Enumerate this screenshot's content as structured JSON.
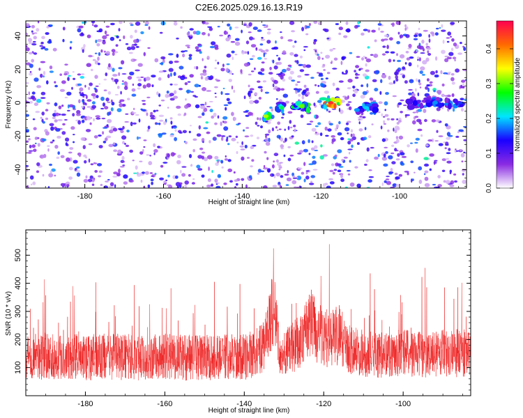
{
  "title": "C2E6.2025.029.16.13.R19",
  "chart_data": [
    {
      "type": "heatmap",
      "xlabel": "Height of straight line (km)",
      "ylabel": "Frequency (Hz)",
      "xlim": [
        -195,
        -83
      ],
      "ylim": [
        -51,
        49
      ],
      "xticks": [
        -180,
        -160,
        -140,
        -120,
        -100
      ],
      "yticks": [
        -40,
        -20,
        0,
        20,
        40
      ],
      "grid": false,
      "colorbar": {
        "label": "Normalized spectral amplitude",
        "range": [
          0,
          0.48
        ],
        "ticks": [
          "0.0",
          "0.1",
          "0.2",
          "0.3",
          "0.4"
        ],
        "stops": [
          "#ffffff",
          "#8a2be2",
          "#1a00ff",
          "#00e5ff",
          "#00ff00",
          "#ffff00",
          "#ff6a00",
          "#ff0050"
        ]
      },
      "signal_segments": [
        {
          "x_start": -135,
          "x_end": -133,
          "freq": -8,
          "peak": 0.32
        },
        {
          "x_start": -131,
          "x_end": -129,
          "freq": -3,
          "peak": 0.25
        },
        {
          "x_start": -127,
          "x_end": -123,
          "freq": -2,
          "peak": 0.3
        },
        {
          "x_start": -120,
          "x_end": -115,
          "freq": 0,
          "peak": 0.45
        },
        {
          "x_start": -111,
          "x_end": -106,
          "freq": -3,
          "peak": 0.2
        },
        {
          "x_start": -98,
          "x_end": -84,
          "freq": 0,
          "peak": 0.18
        }
      ]
    },
    {
      "type": "line",
      "xlabel": "Height of straight line (km)",
      "ylabel": "SNR (10 * v/v)",
      "xlim": [
        -195,
        -83
      ],
      "ylim": [
        0,
        590
      ],
      "xticks": [
        -180,
        -160,
        -140,
        -120,
        -100
      ],
      "yticks": [
        100,
        200,
        300,
        400,
        500
      ],
      "line_color": "#ee2222",
      "grid": false,
      "series": [
        {
          "x": [
            -195,
            -190,
            -185,
            -180,
            -175,
            -170,
            -165,
            -160,
            -155,
            -150,
            -145,
            -140,
            -136,
            -134,
            -133,
            -132,
            -131,
            -130,
            -128,
            -126,
            -124,
            -123,
            -122,
            -120,
            -118,
            -116,
            -115,
            -114,
            -112,
            -110,
            -108,
            -106,
            -104,
            -102,
            -100,
            -98,
            -96,
            -94,
            -92,
            -90,
            -88,
            -86,
            -84,
            -83
          ],
          "values": [
            140,
            138,
            142,
            135,
            140,
            138,
            137,
            139,
            136,
            135,
            140,
            138,
            160,
            230,
            300,
            280,
            140,
            150,
            170,
            190,
            240,
            260,
            230,
            210,
            200,
            220,
            190,
            170,
            160,
            150,
            145,
            142,
            150,
            148,
            155,
            150,
            145,
            148,
            150,
            152,
            155,
            150,
            148,
            150
          ],
          "spread": [
            110,
            110,
            110,
            110,
            110,
            110,
            110,
            110,
            110,
            110,
            110,
            110,
            120,
            150,
            170,
            160,
            80,
            110,
            120,
            130,
            150,
            170,
            150,
            140,
            140,
            150,
            130,
            120,
            115,
            110,
            110,
            110,
            110,
            110,
            110,
            110,
            110,
            110,
            110,
            115,
            115,
            115,
            110,
            110
          ]
        }
      ]
    }
  ]
}
